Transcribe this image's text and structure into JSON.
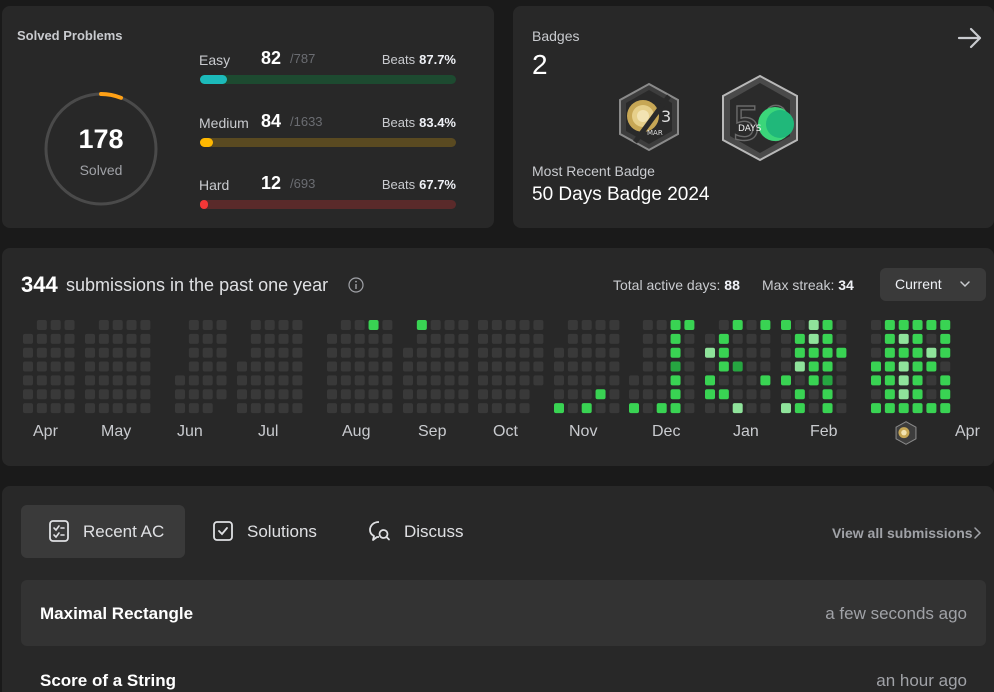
{
  "solved": {
    "title": "Solved Problems",
    "count": "178",
    "label": "Solved",
    "difficulties": [
      {
        "name": "Easy",
        "solved": "82",
        "total": "/787",
        "beats_label": "Beats",
        "beats": "87.7%",
        "fraction": 0.104,
        "fill_color": "#1cbaba",
        "track_color": "#1d4a30"
      },
      {
        "name": "Medium",
        "solved": "84",
        "total": "/1633",
        "beats_label": "Beats",
        "beats": "83.4%",
        "fraction": 0.051,
        "fill_color": "#ffb800",
        "track_color": "#5a4a21"
      },
      {
        "name": "Hard",
        "solved": "12",
        "total": "/693",
        "beats_label": "Beats",
        "beats": "67.7%",
        "fraction": 0.017,
        "fill_color": "#f63737",
        "track_color": "#5a2a2a"
      }
    ]
  },
  "badges": {
    "title": "Badges",
    "count": "2",
    "recent_label": "Most Recent Badge",
    "recent_name": "50 Days Badge 2024",
    "items": [
      {
        "icon": "march-badge-icon",
        "month": "MAR",
        "number": "3"
      },
      {
        "icon": "50-days-badge-icon",
        "number": "50",
        "text": "DAYS"
      }
    ]
  },
  "submissions": {
    "count": "344",
    "text": "submissions in the past one year",
    "active_days_label": "Total active days:",
    "active_days": "88",
    "max_streak_label": "Max streak:",
    "max_streak": "34",
    "dropdown": "Current",
    "months": [
      "Apr",
      "May",
      "Jun",
      "Jul",
      "Aug",
      "Sep",
      "Oct",
      "Nov",
      "Dec",
      "Jan",
      "Feb",
      "Apr"
    ],
    "colors": {
      "empty": "#393939",
      "level1": "#0e4429",
      "level2": "#26a641",
      "level3": "#39d353",
      "level4": "#8fe39b"
    }
  },
  "recent": {
    "tabs": [
      {
        "label": "Recent AC",
        "icon": "checklist-icon"
      },
      {
        "label": "Solutions",
        "icon": "checkbox-icon"
      },
      {
        "label": "Discuss",
        "icon": "discuss-icon"
      }
    ],
    "view_all": "View all submissions",
    "items": [
      {
        "title": "Maximal Rectangle",
        "time": "a few seconds ago"
      },
      {
        "title": "Score of a String",
        "time": "an hour ago"
      }
    ]
  }
}
